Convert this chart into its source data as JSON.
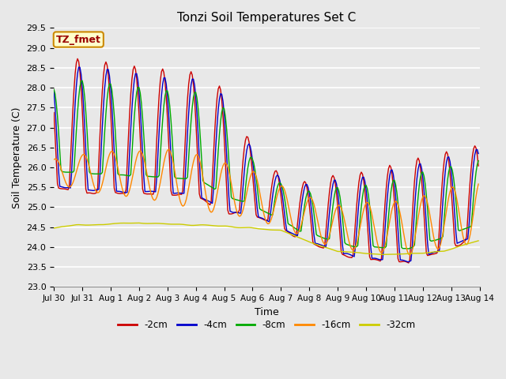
{
  "title": "Tonzi Soil Temperatures Set C",
  "xlabel": "Time",
  "ylabel": "Soil Temperature (C)",
  "ylim": [
    23.0,
    29.5
  ],
  "yticks": [
    23.0,
    23.5,
    24.0,
    24.5,
    25.0,
    25.5,
    26.0,
    26.5,
    27.0,
    27.5,
    28.0,
    28.5,
    29.0,
    29.5
  ],
  "series_colors": [
    "#cc0000",
    "#0000cc",
    "#00aa00",
    "#ff8800",
    "#cccc00"
  ],
  "series_labels": [
    "-2cm",
    "-4cm",
    "-8cm",
    "-16cm",
    "-32cm"
  ],
  "annotation_text": "TZ_fmet",
  "annotation_bg": "#ffffcc",
  "annotation_border": "#cc8800",
  "annotation_text_color": "#990000",
  "background_color": "#e8e8e8",
  "x_tick_labels": [
    "Jul 30",
    "Jul 31",
    "Aug 1",
    "Aug 2",
    "Aug 3",
    "Aug 4",
    "Aug 5",
    "Aug 6",
    "Aug 7",
    "Aug 8",
    "Aug 9",
    "Aug 10",
    "Aug 11",
    "Aug 12",
    "Aug 13",
    "Aug 14"
  ],
  "x_tick_positions": [
    0,
    24,
    48,
    72,
    96,
    120,
    144,
    168,
    192,
    216,
    240,
    264,
    288,
    312,
    336,
    360
  ]
}
